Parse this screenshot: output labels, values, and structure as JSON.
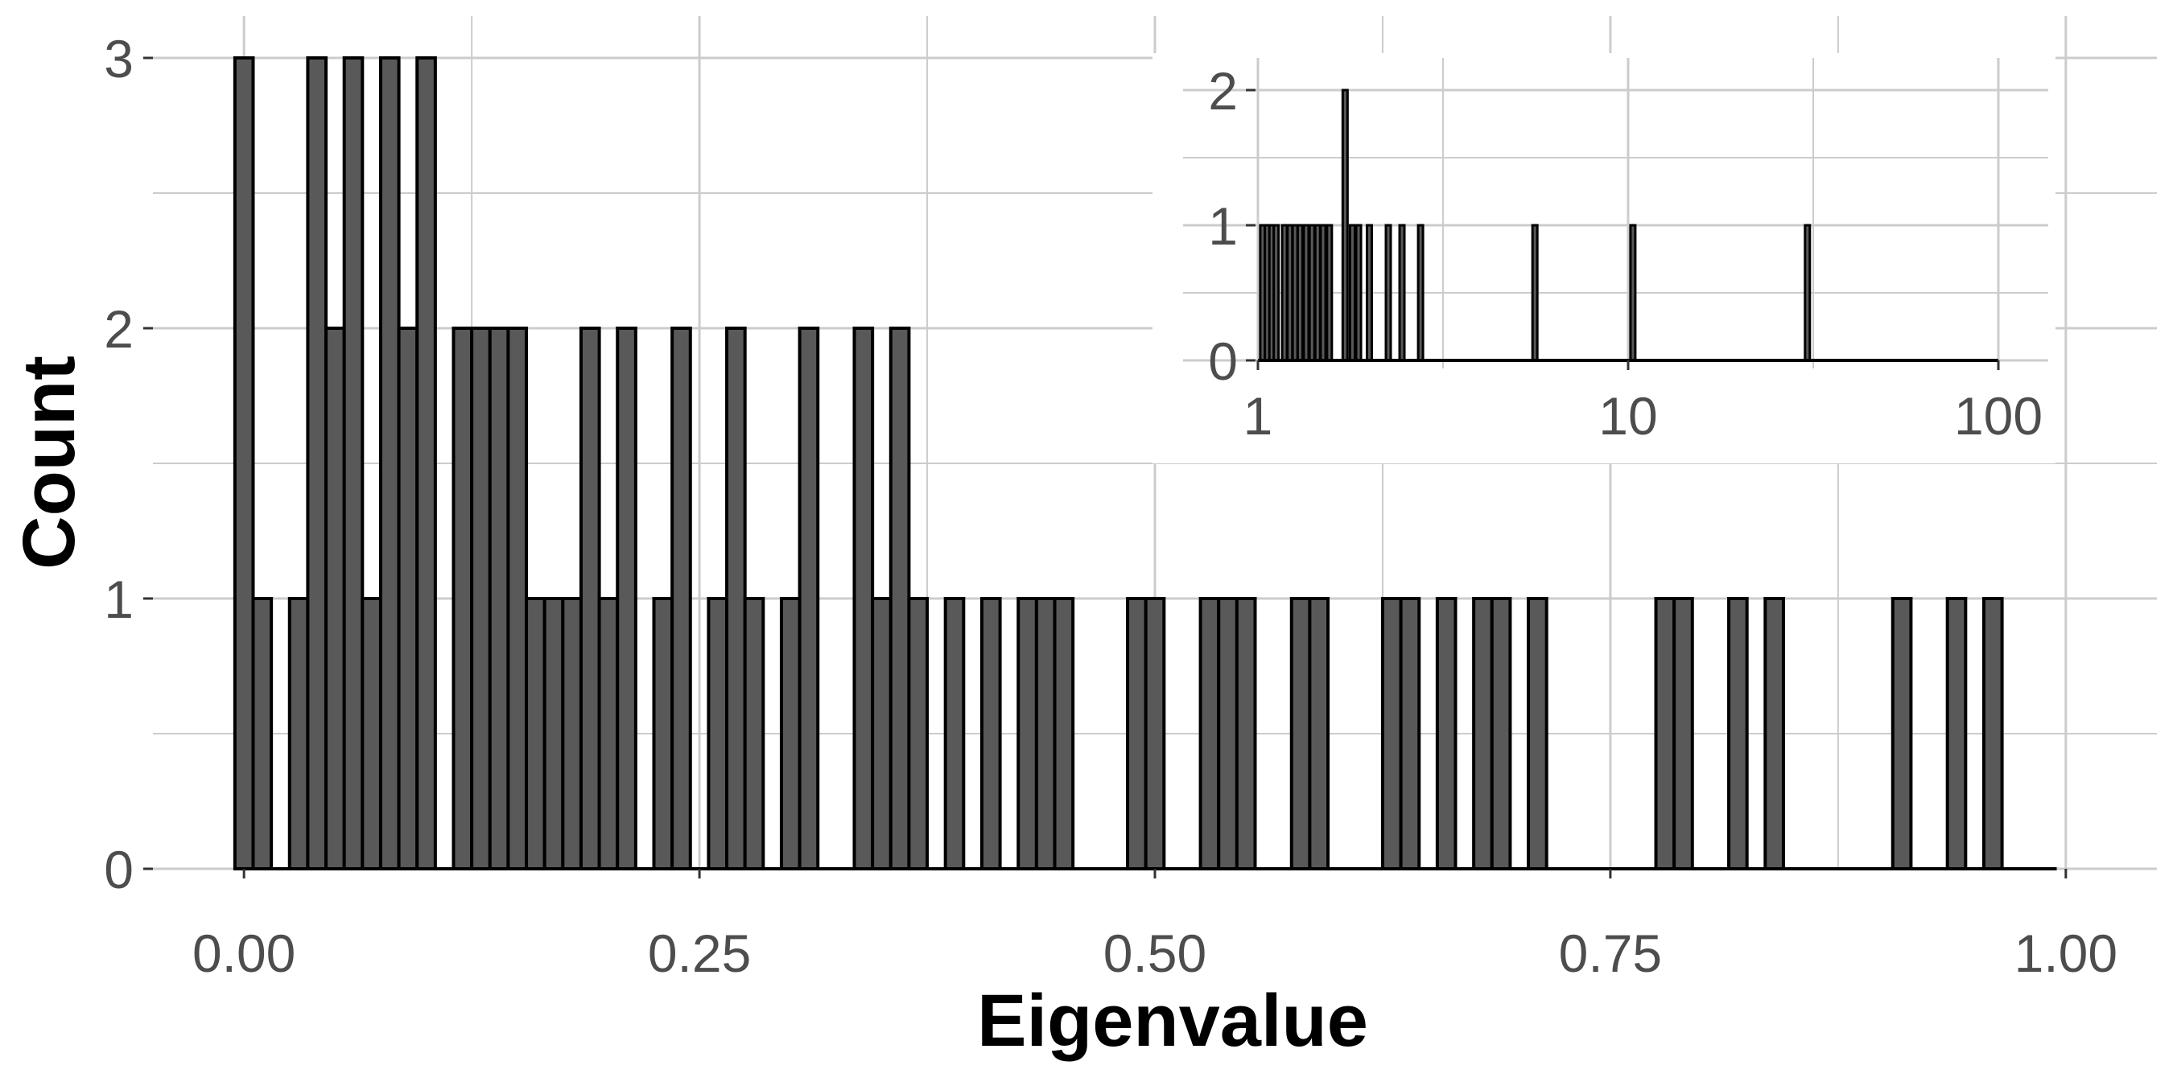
{
  "chart_data": [
    {
      "type": "bar",
      "histogram": true,
      "xlabel": "Eigenvalue",
      "ylabel": "Count",
      "xlim": [
        -0.05,
        1.05
      ],
      "ylim": [
        0,
        3
      ],
      "bin_width": 0.01,
      "x_ticks": [
        0.0,
        0.25,
        0.5,
        0.75,
        1.0
      ],
      "x_tick_labels": [
        "0.00",
        "0.25",
        "0.50",
        "0.75",
        "1.00"
      ],
      "y_ticks": [
        0,
        1,
        2,
        3
      ],
      "y_tick_labels": [
        "0",
        "1",
        "2",
        "3"
      ],
      "grid": true,
      "colors": {
        "bar_fill": "#595959",
        "bar_stroke": "#000000",
        "grid": "#cccccc"
      },
      "bins": [
        {
          "x": 0.0,
          "count": 3
        },
        {
          "x": 0.01,
          "count": 1
        },
        {
          "x": 0.02,
          "count": 0
        },
        {
          "x": 0.03,
          "count": 1
        },
        {
          "x": 0.04,
          "count": 3
        },
        {
          "x": 0.05,
          "count": 2
        },
        {
          "x": 0.06,
          "count": 3
        },
        {
          "x": 0.07,
          "count": 1
        },
        {
          "x": 0.08,
          "count": 3
        },
        {
          "x": 0.09,
          "count": 2
        },
        {
          "x": 0.1,
          "count": 3
        },
        {
          "x": 0.11,
          "count": 0
        },
        {
          "x": 0.12,
          "count": 2
        },
        {
          "x": 0.13,
          "count": 2
        },
        {
          "x": 0.14,
          "count": 2
        },
        {
          "x": 0.15,
          "count": 2
        },
        {
          "x": 0.16,
          "count": 1
        },
        {
          "x": 0.17,
          "count": 1
        },
        {
          "x": 0.18,
          "count": 1
        },
        {
          "x": 0.19,
          "count": 2
        },
        {
          "x": 0.2,
          "count": 1
        },
        {
          "x": 0.21,
          "count": 2
        },
        {
          "x": 0.22,
          "count": 0
        },
        {
          "x": 0.23,
          "count": 1
        },
        {
          "x": 0.24,
          "count": 2
        },
        {
          "x": 0.25,
          "count": 0
        },
        {
          "x": 0.26,
          "count": 1
        },
        {
          "x": 0.27,
          "count": 2
        },
        {
          "x": 0.28,
          "count": 1
        },
        {
          "x": 0.29,
          "count": 0
        },
        {
          "x": 0.3,
          "count": 1
        },
        {
          "x": 0.31,
          "count": 2
        },
        {
          "x": 0.32,
          "count": 0
        },
        {
          "x": 0.33,
          "count": 0
        },
        {
          "x": 0.34,
          "count": 2
        },
        {
          "x": 0.35,
          "count": 1
        },
        {
          "x": 0.36,
          "count": 2
        },
        {
          "x": 0.37,
          "count": 1
        },
        {
          "x": 0.38,
          "count": 0
        },
        {
          "x": 0.39,
          "count": 1
        },
        {
          "x": 0.4,
          "count": 0
        },
        {
          "x": 0.41,
          "count": 1
        },
        {
          "x": 0.42,
          "count": 0
        },
        {
          "x": 0.43,
          "count": 1
        },
        {
          "x": 0.44,
          "count": 1
        },
        {
          "x": 0.45,
          "count": 1
        },
        {
          "x": 0.46,
          "count": 0
        },
        {
          "x": 0.47,
          "count": 0
        },
        {
          "x": 0.48,
          "count": 0
        },
        {
          "x": 0.49,
          "count": 1
        },
        {
          "x": 0.5,
          "count": 1
        },
        {
          "x": 0.51,
          "count": 0
        },
        {
          "x": 0.52,
          "count": 0
        },
        {
          "x": 0.53,
          "count": 1
        },
        {
          "x": 0.54,
          "count": 1
        },
        {
          "x": 0.55,
          "count": 1
        },
        {
          "x": 0.56,
          "count": 0
        },
        {
          "x": 0.57,
          "count": 0
        },
        {
          "x": 0.58,
          "count": 1
        },
        {
          "x": 0.59,
          "count": 1
        },
        {
          "x": 0.6,
          "count": 0
        },
        {
          "x": 0.61,
          "count": 0
        },
        {
          "x": 0.62,
          "count": 0
        },
        {
          "x": 0.63,
          "count": 1
        },
        {
          "x": 0.64,
          "count": 1
        },
        {
          "x": 0.65,
          "count": 0
        },
        {
          "x": 0.66,
          "count": 1
        },
        {
          "x": 0.67,
          "count": 0
        },
        {
          "x": 0.68,
          "count": 1
        },
        {
          "x": 0.69,
          "count": 1
        },
        {
          "x": 0.7,
          "count": 0
        },
        {
          "x": 0.71,
          "count": 1
        },
        {
          "x": 0.72,
          "count": 0
        },
        {
          "x": 0.73,
          "count": 0
        },
        {
          "x": 0.74,
          "count": 0
        },
        {
          "x": 0.75,
          "count": 0
        },
        {
          "x": 0.76,
          "count": 0
        },
        {
          "x": 0.77,
          "count": 0
        },
        {
          "x": 0.78,
          "count": 1
        },
        {
          "x": 0.79,
          "count": 1
        },
        {
          "x": 0.8,
          "count": 0
        },
        {
          "x": 0.81,
          "count": 0
        },
        {
          "x": 0.82,
          "count": 1
        },
        {
          "x": 0.83,
          "count": 0
        },
        {
          "x": 0.84,
          "count": 1
        },
        {
          "x": 0.85,
          "count": 0
        },
        {
          "x": 0.86,
          "count": 0
        },
        {
          "x": 0.87,
          "count": 0
        },
        {
          "x": 0.88,
          "count": 0
        },
        {
          "x": 0.89,
          "count": 0
        },
        {
          "x": 0.9,
          "count": 0
        },
        {
          "x": 0.91,
          "count": 1
        },
        {
          "x": 0.92,
          "count": 0
        },
        {
          "x": 0.93,
          "count": 0
        },
        {
          "x": 0.94,
          "count": 1
        },
        {
          "x": 0.95,
          "count": 0
        },
        {
          "x": 0.96,
          "count": 1
        },
        {
          "x": 0.97,
          "count": 0
        },
        {
          "x": 0.98,
          "count": 0
        },
        {
          "x": 0.99,
          "count": 0
        }
      ]
    },
    {
      "type": "bar",
      "histogram": true,
      "inset": true,
      "x_scale": "log10",
      "xlim": [
        1,
        100
      ],
      "ylim": [
        0,
        2
      ],
      "x_ticks": [
        1,
        10,
        100
      ],
      "x_tick_labels": [
        "1",
        "10",
        "100"
      ],
      "y_ticks": [
        0,
        1,
        2
      ],
      "y_tick_labels": [
        "0",
        "1",
        "2"
      ],
      "grid": true,
      "colors": {
        "bar_fill": "#595959",
        "bar_stroke": "#000000",
        "grid": "#cccccc"
      },
      "bins": [
        {
          "x": 1.03,
          "count": 1
        },
        {
          "x": 1.06,
          "count": 1
        },
        {
          "x": 1.09,
          "count": 1
        },
        {
          "x": 1.12,
          "count": 1
        },
        {
          "x": 1.18,
          "count": 1
        },
        {
          "x": 1.22,
          "count": 1
        },
        {
          "x": 1.26,
          "count": 1
        },
        {
          "x": 1.3,
          "count": 1
        },
        {
          "x": 1.35,
          "count": 1
        },
        {
          "x": 1.4,
          "count": 1
        },
        {
          "x": 1.45,
          "count": 1
        },
        {
          "x": 1.5,
          "count": 1
        },
        {
          "x": 1.56,
          "count": 1
        },
        {
          "x": 1.72,
          "count": 2
        },
        {
          "x": 1.8,
          "count": 1
        },
        {
          "x": 1.87,
          "count": 1
        },
        {
          "x": 2.0,
          "count": 1
        },
        {
          "x": 2.25,
          "count": 1
        },
        {
          "x": 2.45,
          "count": 1
        },
        {
          "x": 2.75,
          "count": 1
        },
        {
          "x": 5.6,
          "count": 1
        },
        {
          "x": 10.3,
          "count": 1
        },
        {
          "x": 30.5,
          "count": 1
        }
      ]
    }
  ]
}
